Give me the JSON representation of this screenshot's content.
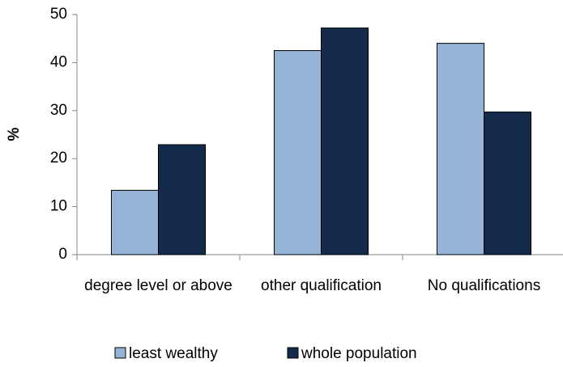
{
  "chart_data": {
    "type": "bar",
    "y_label": "%",
    "categories": [
      "degree level or above",
      "other qualification",
      "No qualifications"
    ],
    "series": [
      {
        "name": "least wealthy",
        "color": "#95b3d7",
        "values": [
          13.4,
          42.5,
          44.0
        ]
      },
      {
        "name": "whole population",
        "color": "#132a4a",
        "values": [
          22.9,
          47.2,
          29.7
        ]
      }
    ],
    "ylim": [
      0,
      50
    ],
    "yticks": [
      0,
      10,
      20,
      30,
      40,
      50
    ],
    "grid": false
  }
}
